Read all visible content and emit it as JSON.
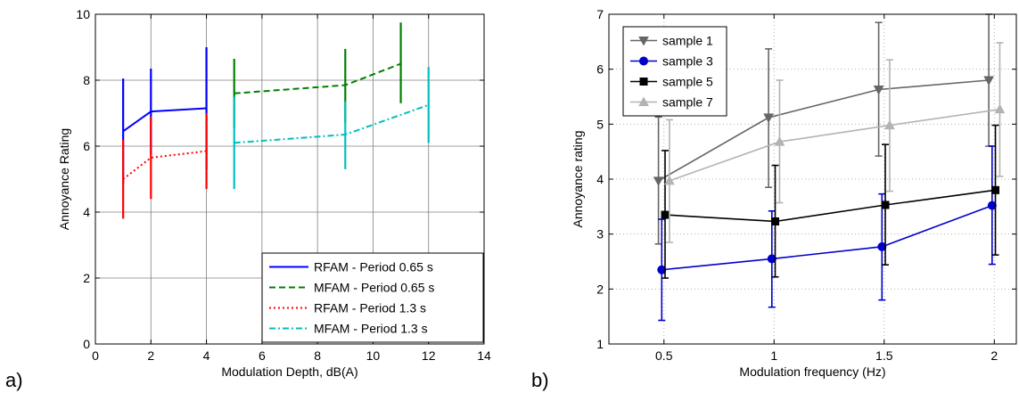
{
  "panels": [
    {
      "letter": "a)"
    },
    {
      "letter": "b)"
    }
  ],
  "chart_data": [
    {
      "type": "line",
      "title": "",
      "xlabel": "Modulation Depth, dB(A)",
      "ylabel": "Annoyance Rating",
      "xlim": [
        0,
        14
      ],
      "ylim": [
        0,
        10
      ],
      "xticks": [
        0,
        2,
        4,
        6,
        8,
        10,
        12,
        14
      ],
      "yticks": [
        0,
        2,
        4,
        6,
        8,
        10
      ],
      "grid": true,
      "legend_position": "bottom-right",
      "series": [
        {
          "name": "RFAM - Period 0.65 s",
          "color": "#0000ff",
          "style": "solid",
          "x": [
            1,
            2,
            4
          ],
          "y": [
            6.45,
            7.05,
            7.15
          ],
          "err_low": [
            4.85,
            5.75,
            5.3
          ],
          "err_high": [
            8.05,
            8.35,
            9.0
          ]
        },
        {
          "name": "MFAM - Period 0.65 s",
          "color": "#008000",
          "style": "dashed",
          "x": [
            5,
            9,
            11
          ],
          "y": [
            7.6,
            7.85,
            8.5
          ],
          "err_low": [
            6.55,
            6.7,
            7.3
          ],
          "err_high": [
            8.65,
            8.95,
            9.75
          ]
        },
        {
          "name": "RFAM - Period 1.3 s",
          "color": "#ff0000",
          "style": "dotted",
          "x": [
            1,
            2,
            4
          ],
          "y": [
            5.0,
            5.65,
            5.85
          ],
          "err_low": [
            3.8,
            4.4,
            4.7
          ],
          "err_high": [
            6.2,
            6.9,
            7.0
          ]
        },
        {
          "name": "MFAM - Period 1.3 s",
          "color": "#00bfbf",
          "style": "dashdot",
          "x": [
            5,
            9,
            12
          ],
          "y": [
            6.1,
            6.35,
            7.25
          ],
          "err_low": [
            4.7,
            5.3,
            6.1
          ],
          "err_high": [
            7.5,
            7.35,
            8.4
          ]
        }
      ]
    },
    {
      "type": "line",
      "title": "",
      "xlabel": "Modulation frequency (Hz)",
      "ylabel": "Annoyance rating",
      "xlim": [
        0.25,
        2.1
      ],
      "ylim": [
        1,
        7
      ],
      "xticks": [
        0.5,
        1,
        1.5,
        2
      ],
      "yticks": [
        1,
        2,
        3,
        4,
        5,
        6,
        7
      ],
      "grid": true,
      "legend_position": "top-left",
      "series": [
        {
          "name": "sample 1",
          "color": "#666666",
          "marker": "triangle-down",
          "x": [
            0.475,
            0.975,
            1.475,
            1.975
          ],
          "y": [
            3.97,
            5.12,
            5.63,
            5.8
          ],
          "err_low": [
            2.82,
            3.85,
            4.42,
            4.6
          ],
          "err_high": [
            5.13,
            6.37,
            6.85,
            7.0
          ]
        },
        {
          "name": "sample 3",
          "color": "#0000cc",
          "marker": "circle",
          "x": [
            0.49,
            0.99,
            1.49,
            1.99
          ],
          "y": [
            2.35,
            2.55,
            2.77,
            3.52
          ],
          "err_low": [
            1.43,
            1.67,
            1.8,
            2.45
          ],
          "err_high": [
            3.27,
            3.42,
            3.73,
            4.6
          ]
        },
        {
          "name": "sample 5",
          "color": "#000000",
          "marker": "square",
          "x": [
            0.505,
            1.005,
            1.505,
            2.005
          ],
          "y": [
            3.35,
            3.23,
            3.53,
            3.8
          ],
          "err_low": [
            2.2,
            2.22,
            2.44,
            2.62
          ],
          "err_high": [
            4.52,
            4.25,
            4.63,
            4.98
          ]
        },
        {
          "name": "sample 7",
          "color": "#b3b3b3",
          "marker": "triangle-up",
          "x": [
            0.525,
            1.025,
            1.525,
            2.025
          ],
          "y": [
            3.97,
            4.68,
            4.98,
            5.27
          ],
          "err_low": [
            2.85,
            3.57,
            3.78,
            4.05
          ],
          "err_high": [
            5.08,
            5.8,
            6.17,
            6.48
          ]
        }
      ]
    }
  ]
}
